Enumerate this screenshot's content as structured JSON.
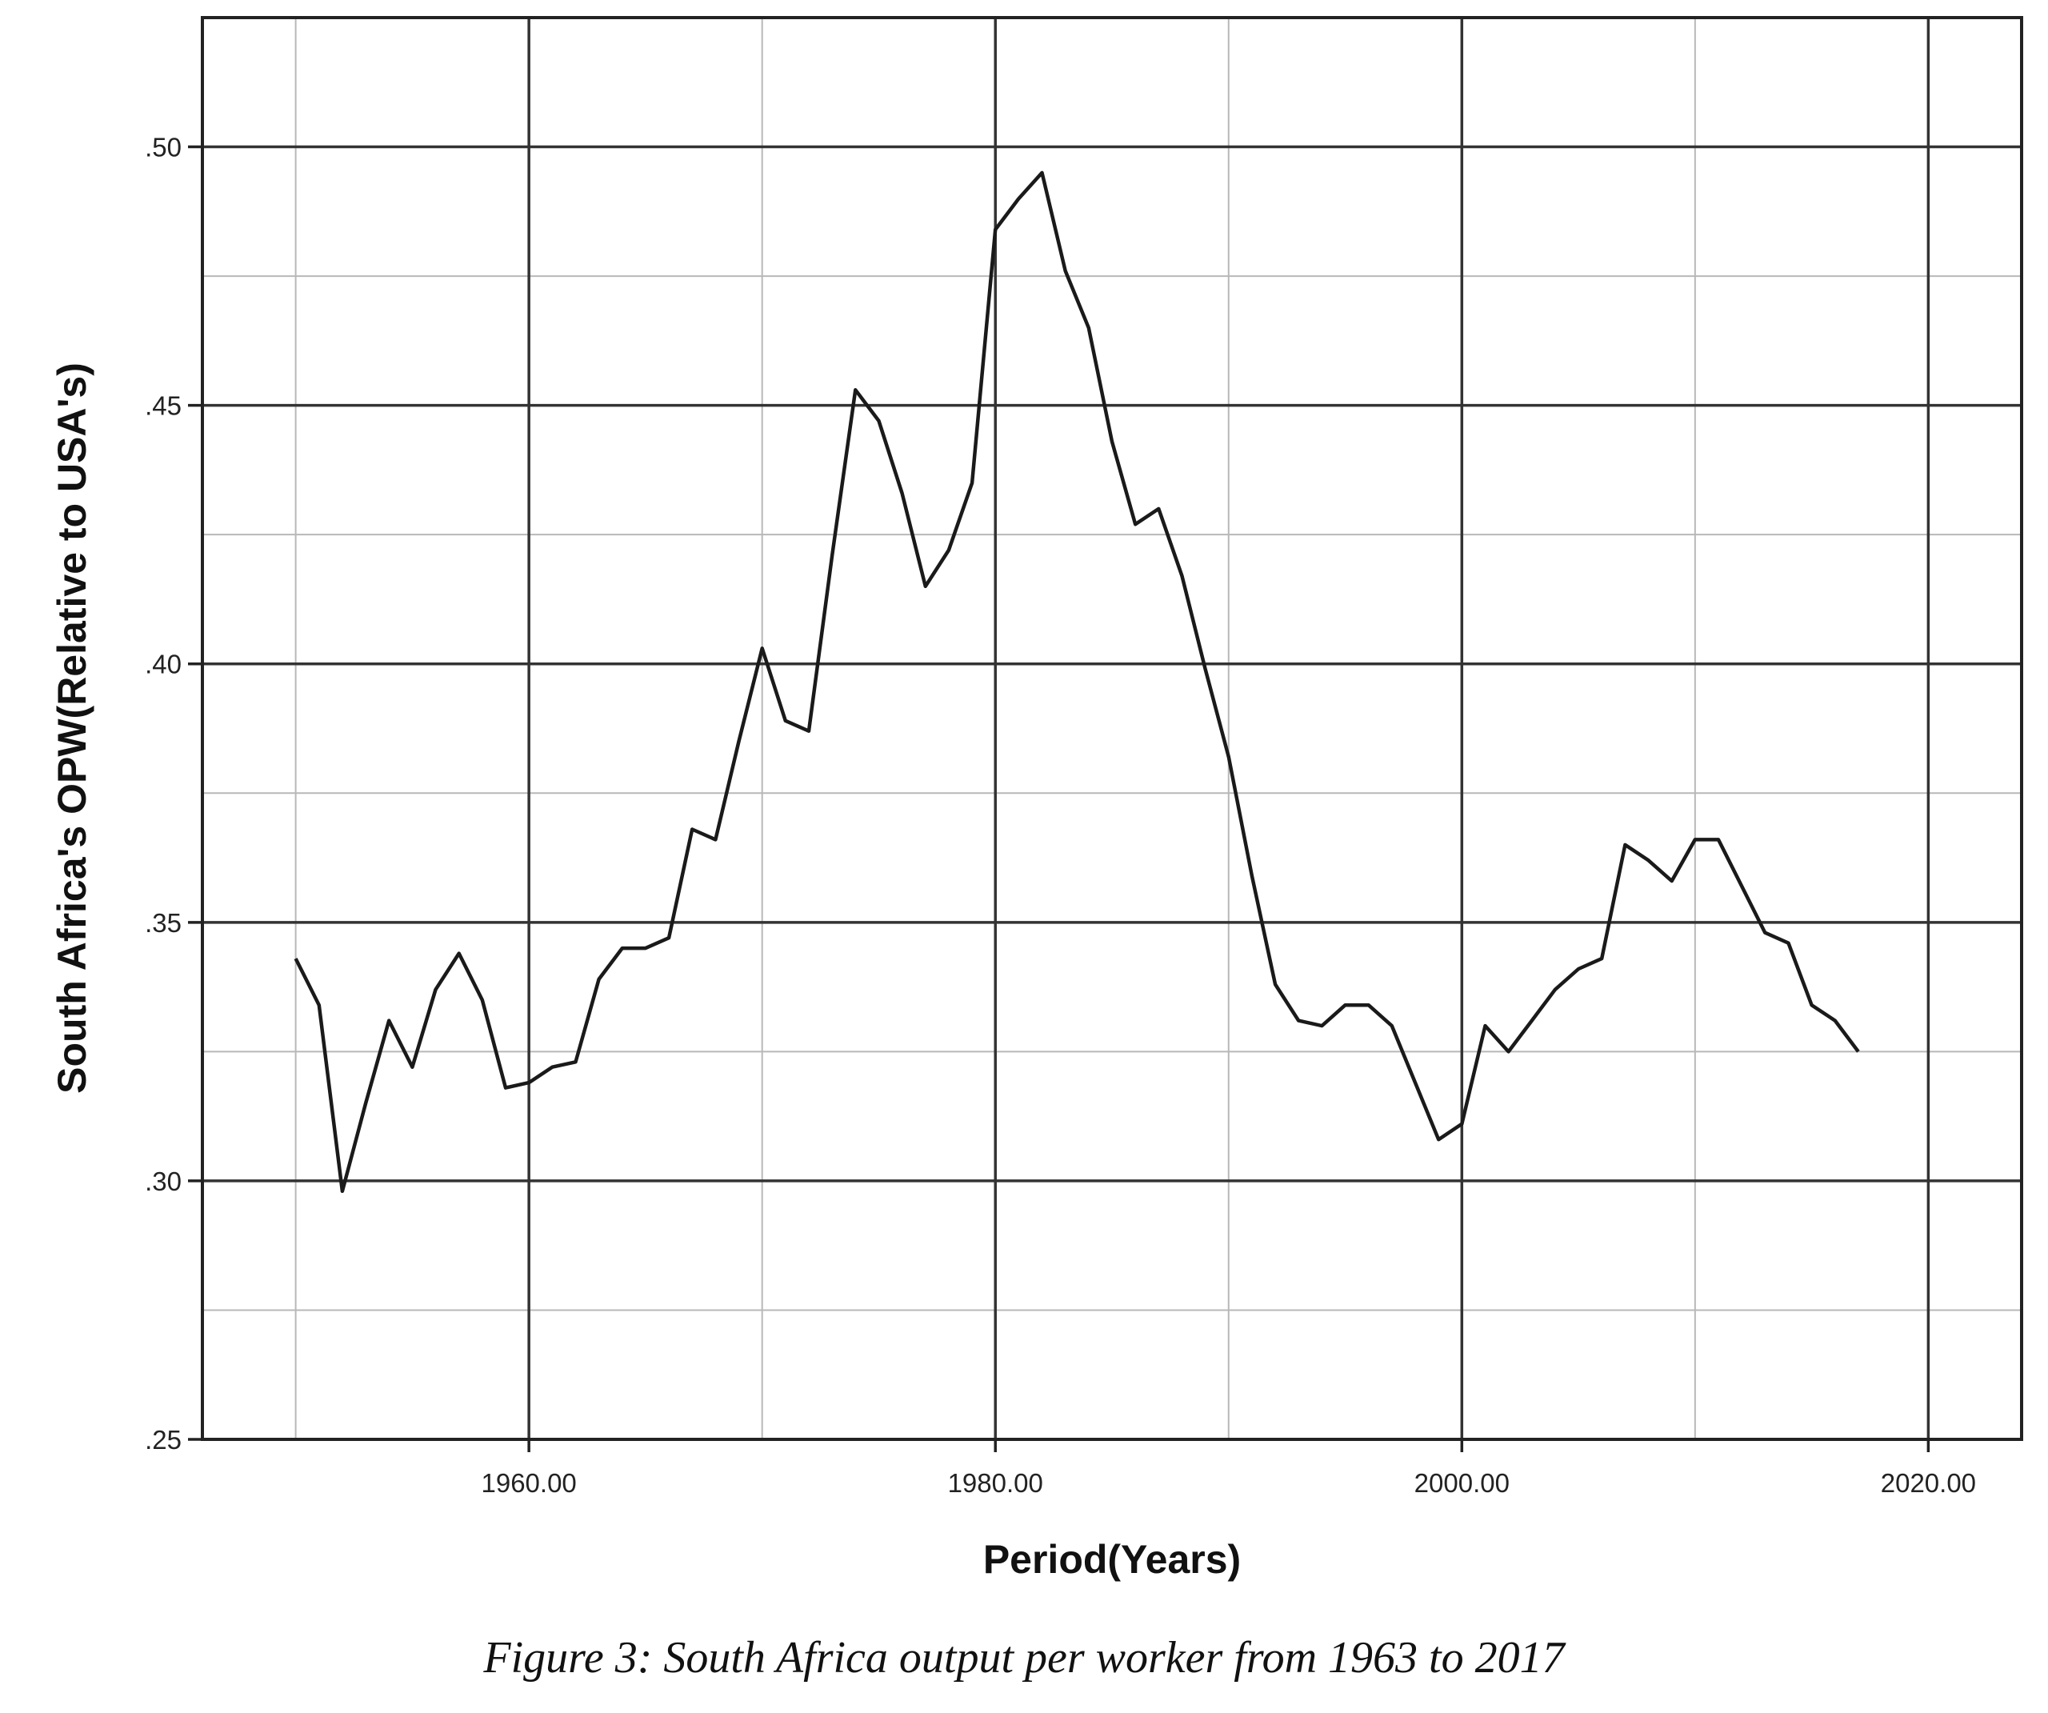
{
  "chart_data": {
    "type": "line",
    "xlabel": "Period(Years)",
    "ylabel": "South Africa's OPW(Relative to USA's)",
    "caption": "Figure 3: South Africa output per worker from 1963 to 2017",
    "xlim": [
      1946,
      2024
    ],
    "ylim": [
      0.25,
      0.525
    ],
    "x_ticks": [
      1960,
      1980,
      2000,
      2020
    ],
    "x_tick_labels": [
      "1960.00",
      "1980.00",
      "2000.00",
      "2020.00"
    ],
    "x_minor_ticks": [
      1950,
      1970,
      1990,
      2010
    ],
    "y_ticks": [
      0.25,
      0.3,
      0.35,
      0.4,
      0.45,
      0.5
    ],
    "y_tick_labels": [
      ".25",
      ".30",
      ".35",
      ".40",
      ".45",
      ".50"
    ],
    "y_minor_ticks": [
      0.275,
      0.325,
      0.375,
      0.425,
      0.475
    ],
    "grid": true,
    "line_color": "#1a1a1a",
    "series": [
      {
        "x": [
          1950,
          1951,
          1952,
          1953,
          1954,
          1955,
          1956,
          1957,
          1958,
          1959,
          1960,
          1961,
          1962,
          1963,
          1964,
          1965,
          1966,
          1967,
          1968,
          1969,
          1970,
          1971,
          1972,
          1973,
          1974,
          1975,
          1976,
          1977,
          1978,
          1979,
          1980,
          1981,
          1982,
          1983,
          1984,
          1985,
          1986,
          1987,
          1988,
          1989,
          1990,
          1991,
          1992,
          1993,
          1994,
          1995,
          1996,
          1997,
          1998,
          1999,
          2000,
          2001,
          2002,
          2003,
          2004,
          2005,
          2006,
          2007,
          2008,
          2009,
          2010,
          2011,
          2012,
          2013,
          2014,
          2015,
          2016,
          2017
        ],
        "values": [
          0.343,
          0.334,
          0.298,
          0.315,
          0.331,
          0.322,
          0.337,
          0.344,
          0.335,
          0.318,
          0.319,
          0.322,
          0.323,
          0.339,
          0.345,
          0.345,
          0.347,
          0.368,
          0.366,
          0.385,
          0.403,
          0.389,
          0.387,
          0.421,
          0.453,
          0.447,
          0.433,
          0.415,
          0.422,
          0.435,
          0.484,
          0.49,
          0.495,
          0.476,
          0.465,
          0.443,
          0.427,
          0.43,
          0.417,
          0.399,
          0.382,
          0.359,
          0.338,
          0.331,
          0.33,
          0.334,
          0.334,
          0.33,
          0.319,
          0.308,
          0.311,
          0.33,
          0.325,
          0.331,
          0.337,
          0.341,
          0.343,
          0.365,
          0.362,
          0.358,
          0.366,
          0.366,
          0.357,
          0.348,
          0.346,
          0.334,
          0.331,
          0.325
        ]
      }
    ]
  }
}
